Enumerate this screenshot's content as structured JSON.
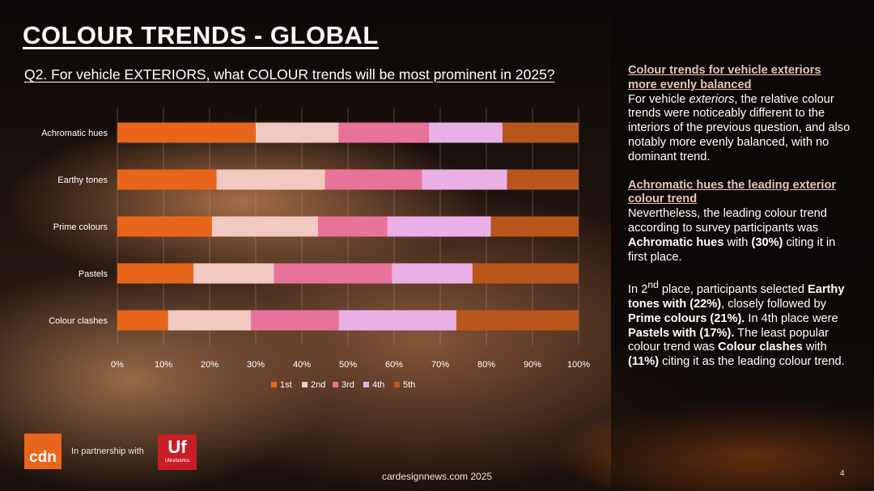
{
  "slide": {
    "title": "COLOUR TRENDS - GLOBAL",
    "question": "Q2. For vehicle EXTERIORS, what COLOUR trends will be most prominent in 2025?",
    "partner_text": "In partnership with",
    "footer": "cardesignnews.com 2025",
    "page_number": "4",
    "logos": {
      "cdn": "cdn",
      "uf": "Uf",
      "uf_sub": "Ultrafabrics"
    }
  },
  "sidebar": {
    "heading1": "Colour trends for vehicle exteriors more evenly balanced",
    "p1_a": "For vehicle ",
    "p1_em": "exteriors",
    "p1_b": ", the relative colour trends were noticeably different to the interiors of the previous question, and also notably more evenly balanced, with no dominant trend.",
    "heading2": "Achromatic hues the leading exterior colour trend",
    "p2_a": "Nevertheless, the leading colour trend according to survey participants was ",
    "p2_bold1": "Achromatic hues",
    "p2_b": " with ",
    "p2_bold2": "(30%)",
    "p2_c": " citing it in first place.",
    "p3_a": "In 2",
    "p3_sup": "nd",
    "p3_b": " place, participants selected ",
    "p3_bold1": "Earthy tones with (22%)",
    "p3_c": ", closely followed by ",
    "p3_bold2": "Prime colours (21%).",
    "p3_d": " In 4th place were ",
    "p3_bold3": "Pastels with (17%).",
    "p3_e": " The least popular colour trend was ",
    "p3_bold4": "Colour clashes",
    "p3_f": " with ",
    "p3_bold5": "(11%)",
    "p3_g": " citing it as the leading colour trend."
  },
  "chart_data": {
    "type": "bar",
    "orientation": "horizontal",
    "stacked": "percent",
    "categories": [
      "Achromatic hues",
      "Earthy tones",
      "Prime colours",
      "Pastels",
      "Colour clashes"
    ],
    "series": [
      {
        "name": "1st",
        "color": "#e8661c",
        "values": [
          30,
          21.5,
          20.5,
          16.5,
          11
        ]
      },
      {
        "name": "2nd",
        "color": "#f2c9c0",
        "values": [
          18,
          23.5,
          23,
          17.5,
          18
        ]
      },
      {
        "name": "3rd",
        "color": "#e8739a",
        "values": [
          19.5,
          21,
          15,
          25.5,
          19
        ]
      },
      {
        "name": "4th",
        "color": "#eab0e6",
        "values": [
          16,
          18.5,
          22.5,
          17.5,
          25.5
        ]
      },
      {
        "name": "5th",
        "color": "#b8561c",
        "values": [
          16.5,
          15.5,
          19,
          23,
          26.5
        ]
      }
    ],
    "x_ticks": [
      "0%",
      "10%",
      "20%",
      "30%",
      "40%",
      "50%",
      "60%",
      "70%",
      "80%",
      "90%",
      "100%"
    ],
    "xlim": [
      0,
      100
    ],
    "grid": true,
    "legend_position": "bottom"
  }
}
